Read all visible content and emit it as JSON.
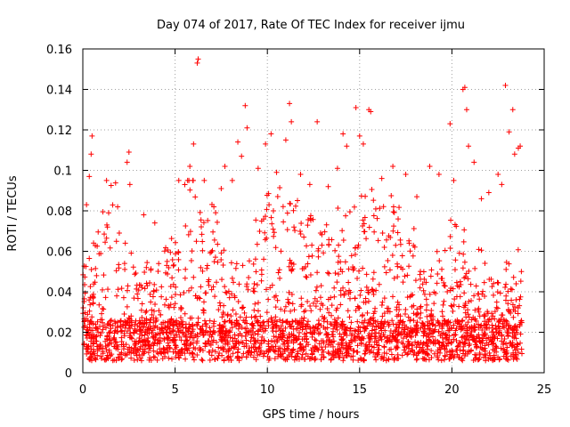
{
  "chart_data": {
    "type": "scatter",
    "title": "Day 074 of 2017, Rate Of TEC Index for receiver ijmu",
    "xlabel": "GPS time / hours",
    "ylabel": "ROTI / TECUs",
    "xlim": [
      0,
      25
    ],
    "ylim": [
      0,
      0.16
    ],
    "grid": true,
    "marker": "plus",
    "color": "#ff0000",
    "x_ticks": [
      0,
      5,
      10,
      15,
      20,
      25
    ],
    "y_ticks": [
      0,
      0.02,
      0.04,
      0.06,
      0.08,
      0.1,
      0.12,
      0.14,
      0.16
    ],
    "x_tick_labels": [
      "0",
      "5",
      "10",
      "15",
      "20",
      "25"
    ],
    "y_tick_labels": [
      "0",
      "0.02",
      "0.04",
      "0.06",
      "0.08",
      "0.1",
      "0.12",
      "0.14",
      "0.16"
    ],
    "data_range_x": [
      0,
      23.8
    ],
    "series": [
      {
        "name": "ROTI",
        "points": [
          [
            0.2,
            0.083
          ],
          [
            0.35,
            0.097
          ],
          [
            0.45,
            0.108
          ],
          [
            0.5,
            0.117
          ],
          [
            1.4,
            0.079
          ],
          [
            2.4,
            0.104
          ],
          [
            2.5,
            0.109
          ],
          [
            2.55,
            0.093
          ],
          [
            3.3,
            0.078
          ],
          [
            3.9,
            0.074
          ],
          [
            5.2,
            0.095
          ],
          [
            5.8,
            0.102
          ],
          [
            6.0,
            0.113
          ],
          [
            6.2,
            0.153
          ],
          [
            6.25,
            0.155
          ],
          [
            7.1,
            0.082
          ],
          [
            7.5,
            0.091
          ],
          [
            7.7,
            0.102
          ],
          [
            8.1,
            0.095
          ],
          [
            8.4,
            0.114
          ],
          [
            8.6,
            0.107
          ],
          [
            8.8,
            0.132
          ],
          [
            8.9,
            0.121
          ],
          [
            9.5,
            0.101
          ],
          [
            9.9,
            0.113
          ],
          [
            10.2,
            0.118
          ],
          [
            10.5,
            0.099
          ],
          [
            11.0,
            0.115
          ],
          [
            11.2,
            0.133
          ],
          [
            11.3,
            0.124
          ],
          [
            11.8,
            0.098
          ],
          [
            12.3,
            0.093
          ],
          [
            12.7,
            0.124
          ],
          [
            13.3,
            0.092
          ],
          [
            13.8,
            0.101
          ],
          [
            14.1,
            0.118
          ],
          [
            14.3,
            0.112
          ],
          [
            14.8,
            0.131
          ],
          [
            15.0,
            0.117
          ],
          [
            15.2,
            0.113
          ],
          [
            15.5,
            0.13
          ],
          [
            15.6,
            0.129
          ],
          [
            16.2,
            0.096
          ],
          [
            16.8,
            0.102
          ],
          [
            17.5,
            0.098
          ],
          [
            18.1,
            0.087
          ],
          [
            18.8,
            0.102
          ],
          [
            19.3,
            0.098
          ],
          [
            19.9,
            0.123
          ],
          [
            20.1,
            0.095
          ],
          [
            20.6,
            0.14
          ],
          [
            20.7,
            0.141
          ],
          [
            20.8,
            0.13
          ],
          [
            20.9,
            0.112
          ],
          [
            21.2,
            0.104
          ],
          [
            22.5,
            0.098
          ],
          [
            22.7,
            0.093
          ],
          [
            22.9,
            0.142
          ],
          [
            23.1,
            0.119
          ],
          [
            23.3,
            0.13
          ],
          [
            23.4,
            0.108
          ],
          [
            23.6,
            0.111
          ],
          [
            23.7,
            0.112
          ],
          [
            22.0,
            0.089
          ],
          [
            21.6,
            0.086
          ]
        ]
      }
    ]
  }
}
